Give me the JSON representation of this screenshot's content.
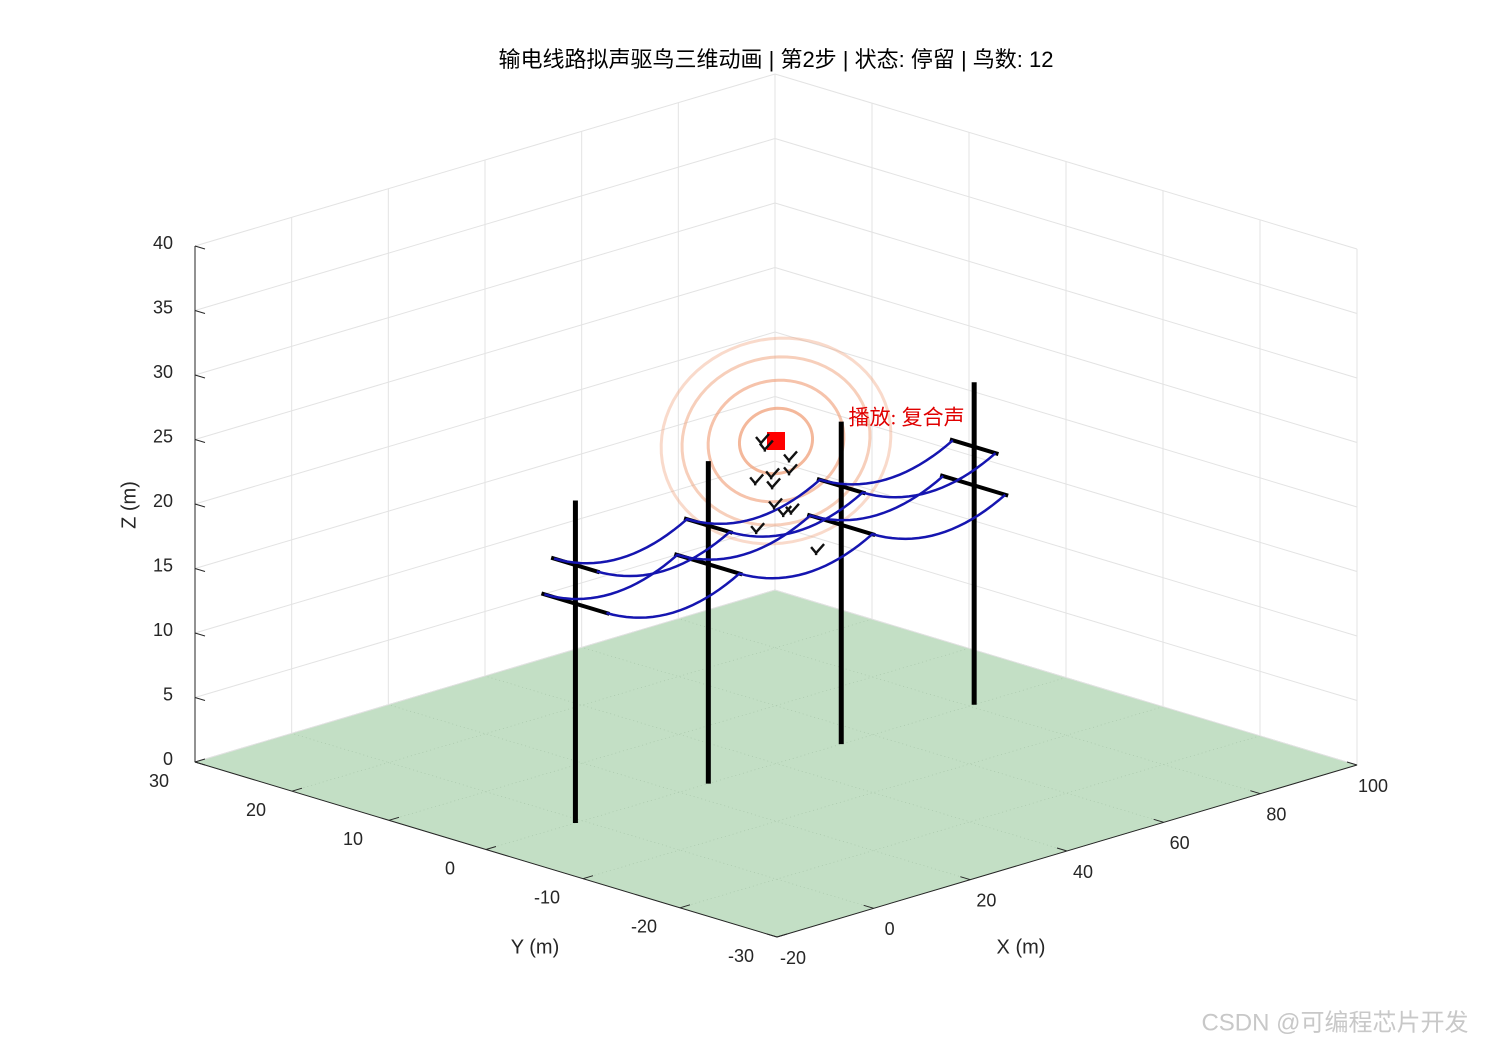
{
  "chart_data": {
    "type": "scatter3d",
    "title": "输电线路拟声驱鸟三维动画 | 第2步 | 状态: 停留 | 鸟数: 12",
    "xlabel": "X (m)",
    "ylabel": "Y (m)",
    "zlabel": "Z (m)",
    "xlim": [
      -20,
      100
    ],
    "ylim": [
      -30,
      30
    ],
    "zlim": [
      0,
      40
    ],
    "xticks": [
      -20,
      0,
      20,
      40,
      60,
      80,
      100
    ],
    "yticks": [
      -30,
      -20,
      -10,
      0,
      10,
      20,
      30
    ],
    "zticks": [
      0,
      5,
      10,
      15,
      20,
      25,
      30,
      35,
      40
    ],
    "grid": true,
    "ground_color": "#b9d9bb",
    "pole_x": [
      -1.5,
      26,
      53.5,
      81
    ],
    "pole_height": 25,
    "pole_color": "#000000",
    "arms": [
      {
        "z": 20,
        "half": 2.5
      },
      {
        "z": 17,
        "half": 3.5
      }
    ],
    "wires": [
      {
        "y": -2.2,
        "z": 20
      },
      {
        "y": 2.2,
        "z": 20
      },
      {
        "y": -3.2,
        "z": 17
      },
      {
        "y": 3.2,
        "z": 17
      }
    ],
    "wire_sag": 1.5,
    "wire_color": "#1515b0",
    "speaker": {
      "x": 40,
      "y": 0,
      "z": 25,
      "color": "#ff0000"
    },
    "rings": [
      3.5,
      6.5,
      9,
      11
    ],
    "ring_color": "#f0a07a",
    "annotation": {
      "text": "播放: 复合声",
      "x": 55,
      "y": 0,
      "z": 25,
      "color": "#e00000"
    },
    "birds": {
      "x": [
        37.1,
        42.9,
        39.2,
        35.9,
        39.4,
        42.9,
        39.8,
        43.3,
        41.7,
        36.1,
        48.5,
        37.9
      ],
      "y": [
        0,
        0,
        0,
        0,
        0,
        0,
        0,
        0,
        0,
        0,
        0,
        0
      ],
      "z": [
        25.4,
        23.4,
        22.5,
        22.4,
        21.7,
        22.4,
        20.1,
        19.3,
        19.3,
        18.6,
        15.6,
        24.8
      ]
    },
    "watermark": "CSDN @可编程芯片开发"
  }
}
